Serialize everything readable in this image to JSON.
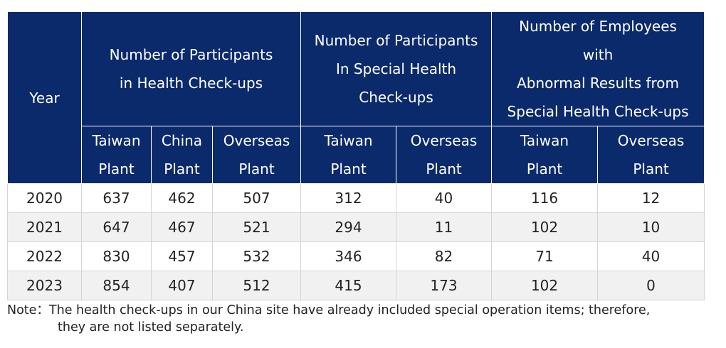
{
  "table": {
    "year_header": "Year",
    "groups": [
      {
        "lines": [
          "Number of Participants",
          "in Health Check-ups"
        ]
      },
      {
        "lines": [
          "Number of Participants",
          "In Special Health",
          "Check-ups"
        ]
      },
      {
        "lines": [
          "Number of Employees",
          "with",
          "Abnormal Results from",
          "Special Health Check-ups"
        ]
      }
    ],
    "subheaders": [
      {
        "lines": [
          "Taiwan",
          "Plant"
        ]
      },
      {
        "lines": [
          "China",
          "Plant"
        ]
      },
      {
        "lines": [
          "Overseas",
          "Plant"
        ]
      },
      {
        "lines": [
          "Taiwan",
          "Plant"
        ]
      },
      {
        "lines": [
          "Overseas",
          "Plant"
        ]
      },
      {
        "lines": [
          "Taiwan",
          "Plant"
        ]
      },
      {
        "lines": [
          "Overseas",
          "Plant"
        ]
      }
    ],
    "rows": [
      {
        "year": "2020",
        "values": [
          "637",
          "462",
          "507",
          "312",
          "40",
          "116",
          "12"
        ]
      },
      {
        "year": "2021",
        "values": [
          "647",
          "467",
          "521",
          "294",
          "11",
          "102",
          "10"
        ]
      },
      {
        "year": "2022",
        "values": [
          "830",
          "457",
          "532",
          "346",
          "82",
          "71",
          "40"
        ]
      },
      {
        "year": "2023",
        "values": [
          "854",
          "407",
          "512",
          "415",
          "173",
          "102",
          "0"
        ]
      }
    ]
  },
  "note": {
    "line1": "Note：The health check-ups in our China site have already included special operation items; therefore,",
    "line2": "they are not listed separately."
  },
  "colors": {
    "header_bg": "#0b2a6b",
    "header_text": "#ffffff",
    "alt_row_bg": "#f1f1f1",
    "grid": "#d4d4d4"
  }
}
